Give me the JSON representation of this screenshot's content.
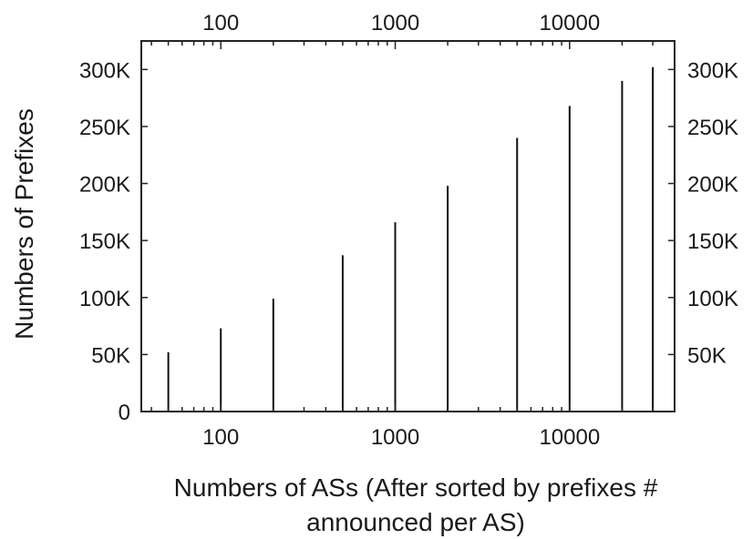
{
  "chart_data": {
    "type": "bar",
    "x_scale": "log",
    "x": [
      50,
      100,
      200,
      500,
      1000,
      2000,
      5000,
      10000,
      20000,
      30000
    ],
    "values": [
      52000,
      73000,
      99000,
      137000,
      166000,
      198000,
      240000,
      268000,
      290000,
      302000
    ],
    "xlim": [
      35,
      40000
    ],
    "ylim": [
      0,
      325000
    ],
    "x_ticks": [
      {
        "value": 100,
        "label": "100"
      },
      {
        "value": 1000,
        "label": "1000"
      },
      {
        "value": 10000,
        "label": "10000"
      }
    ],
    "y_ticks_left": [
      {
        "value": 0,
        "label": "0"
      },
      {
        "value": 50000,
        "label": "50K"
      },
      {
        "value": 100000,
        "label": "100K"
      },
      {
        "value": 150000,
        "label": "150K"
      },
      {
        "value": 200000,
        "label": "200K"
      },
      {
        "value": 250000,
        "label": "250K"
      },
      {
        "value": 300000,
        "label": "300K"
      }
    ],
    "y_ticks_right": [
      {
        "value": 50000,
        "label": "50K"
      },
      {
        "value": 100000,
        "label": "100K"
      },
      {
        "value": 150000,
        "label": "150K"
      },
      {
        "value": 200000,
        "label": "200K"
      },
      {
        "value": 250000,
        "label": "250K"
      },
      {
        "value": 300000,
        "label": "300K"
      }
    ],
    "ylabel": "Numbers of Prefixes",
    "xlabel_line1": "Numbers of ASs (After sorted by prefixes #",
    "xlabel_line2": "announced per AS)",
    "grid": false,
    "bar_color": "#111111",
    "axis_color": "#222222"
  }
}
